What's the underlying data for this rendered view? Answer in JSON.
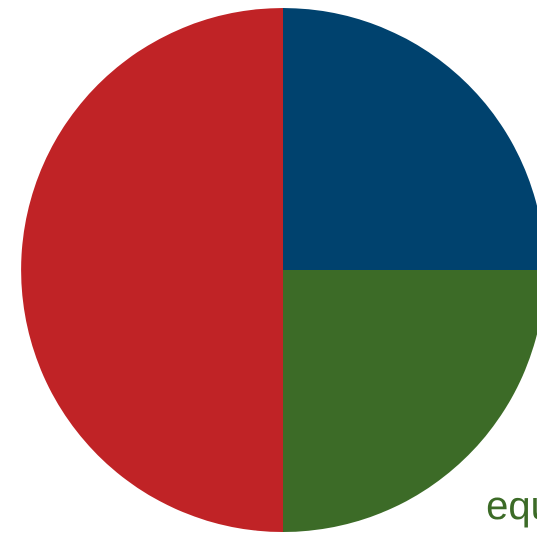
{
  "chart_data": {
    "type": "pie",
    "start_angle_deg": 0,
    "direction": "clockwise",
    "slices": [
      {
        "value": 25,
        "color": "#00426e"
      },
      {
        "value": 25,
        "color": "#3c6b27"
      },
      {
        "value": 50,
        "color": "#c02326"
      }
    ],
    "labels": [
      {
        "text": "equi",
        "color": "#3c6b27",
        "slice_index": 1
      }
    ]
  }
}
